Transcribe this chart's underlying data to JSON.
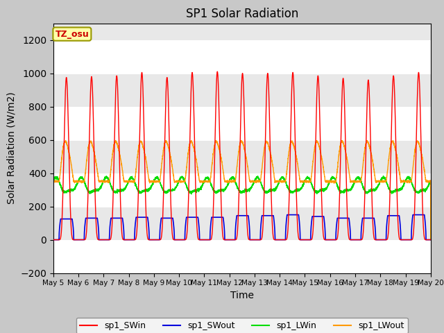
{
  "title": "SP1 Solar Radiation",
  "xlabel": "Time",
  "ylabel": "Solar Radiation (W/m2)",
  "ylim": [
    -200,
    1300
  ],
  "yticks": [
    -200,
    0,
    200,
    400,
    600,
    800,
    1000,
    1200
  ],
  "num_days": 15,
  "tz_label": "TZ_osu",
  "colors": {
    "SWin": "#ff0000",
    "SWout": "#0000dd",
    "LWin": "#00dd00",
    "LWout": "#ff9900"
  },
  "legend_labels": [
    "sp1_SWin",
    "sp1_SWout",
    "sp1_LWin",
    "sp1_LWout"
  ],
  "x_tick_labels": [
    "May 5",
    "May 6",
    "May 7",
    "May 8",
    "May 9",
    "May 10",
    "May 11",
    "May 12",
    "May 13",
    "May 14",
    "May 15",
    "May 16",
    "May 17",
    "May 18",
    "May 19",
    "May 20"
  ],
  "plot_bg_color": "#e8e8e8",
  "fig_bg_color": "#c8c8c8",
  "grid_color": "#ffffff"
}
